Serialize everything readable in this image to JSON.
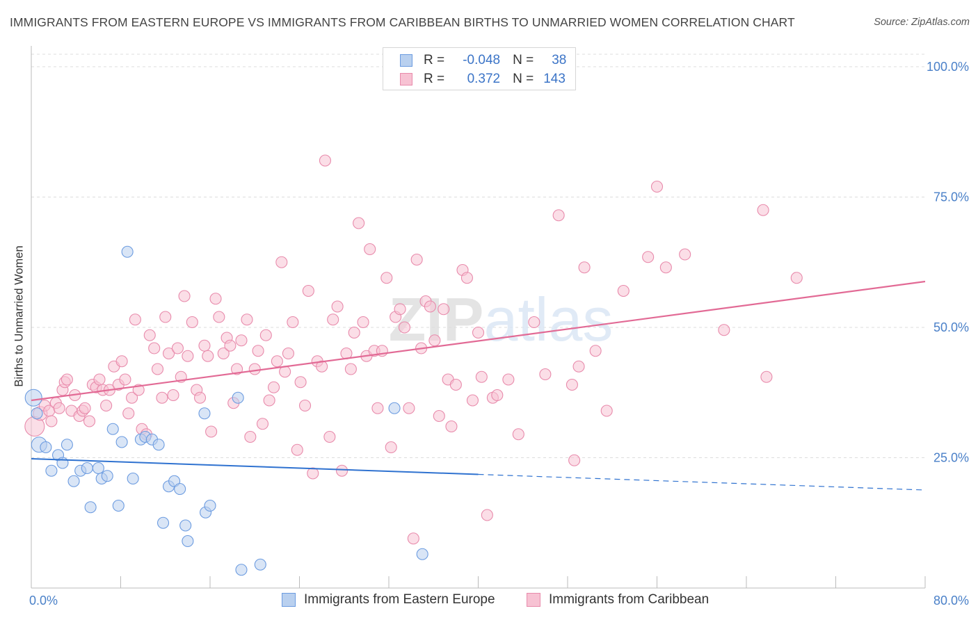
{
  "title": "IMMIGRANTS FROM EASTERN EUROPE VS IMMIGRANTS FROM CARIBBEAN BIRTHS TO UNMARRIED WOMEN CORRELATION CHART",
  "source": "Source: ZipAtlas.com",
  "watermark": "ZIPatlas",
  "colors": {
    "blue_fill": "#b9d0ef",
    "blue_stroke": "#6b9be0",
    "blue_line": "#2f72d0",
    "pink_fill": "#f7c2d3",
    "pink_stroke": "#e88aab",
    "pink_line": "#e26a95",
    "tick_text": "#4a80c8",
    "grid": "#dcdcdc"
  },
  "legend": {
    "rows": [
      {
        "r_label": "R =",
        "r_value": "-0.048",
        "n_label": "N =",
        "n_value": "38"
      },
      {
        "r_label": "R =",
        "r_value": "0.372",
        "n_label": "N =",
        "n_value": "143"
      }
    ]
  },
  "chart_data": {
    "type": "scatter",
    "title": "IMMIGRANTS FROM EASTERN EUROPE VS IMMIGRANTS FROM CARIBBEAN BIRTHS TO UNMARRIED WOMEN CORRELATION CHART",
    "xlabel": "",
    "ylabel": "Births to Unmarried Women",
    "xlim": [
      0,
      80
    ],
    "ylim": [
      0,
      100
    ],
    "x_tick_labels": [
      "0.0%",
      "80.0%"
    ],
    "y_tick_labels": [
      "25.0%",
      "50.0%",
      "75.0%",
      "100.0%"
    ],
    "y_ticks": [
      25,
      50,
      75,
      100
    ],
    "grid": true,
    "legend_position": "top-center",
    "series": [
      {
        "name": "Immigrants from Eastern Europe",
        "r": -0.048,
        "n": 38,
        "trend": {
          "x0": 0,
          "y0": 24.8,
          "x1": 40,
          "y1": 21.8,
          "dashed_to_x": 80,
          "dashed_to_y": 18.8
        },
        "points": [
          [
            0.2,
            36.5,
            12
          ],
          [
            0.5,
            33.5,
            8
          ],
          [
            0.7,
            27.5,
            11
          ],
          [
            1.3,
            27.0,
            8
          ],
          [
            1.8,
            22.5,
            8
          ],
          [
            2.4,
            25.5,
            8
          ],
          [
            2.8,
            24.0,
            8
          ],
          [
            3.2,
            27.5,
            8
          ],
          [
            3.8,
            20.5,
            8
          ],
          [
            4.4,
            22.5,
            8
          ],
          [
            5.0,
            23.0,
            8
          ],
          [
            5.3,
            15.5,
            8
          ],
          [
            6.0,
            23.0,
            8
          ],
          [
            6.3,
            21.0,
            8
          ],
          [
            6.8,
            21.5,
            8
          ],
          [
            7.3,
            30.5,
            8
          ],
          [
            7.8,
            15.8,
            8
          ],
          [
            8.1,
            28.0,
            8
          ],
          [
            8.6,
            64.5,
            8
          ],
          [
            9.1,
            21.0,
            8
          ],
          [
            9.8,
            28.5,
            8
          ],
          [
            10.2,
            29.0,
            8
          ],
          [
            10.8,
            28.5,
            8
          ],
          [
            11.4,
            27.5,
            8
          ],
          [
            11.8,
            12.5,
            8
          ],
          [
            12.3,
            19.5,
            8
          ],
          [
            12.8,
            20.5,
            8
          ],
          [
            13.3,
            19.0,
            8
          ],
          [
            13.8,
            12.0,
            8
          ],
          [
            14.0,
            9.0,
            8
          ],
          [
            15.5,
            33.5,
            8
          ],
          [
            15.6,
            14.5,
            8
          ],
          [
            16.0,
            15.8,
            8
          ],
          [
            18.5,
            36.5,
            8
          ],
          [
            18.8,
            3.5,
            8
          ],
          [
            20.5,
            4.5,
            8
          ],
          [
            32.5,
            34.5,
            8
          ],
          [
            35.0,
            6.5,
            8
          ]
        ]
      },
      {
        "name": "Immigrants from Caribbean",
        "r": 0.372,
        "n": 143,
        "trend": {
          "x0": 0,
          "y0": 36.0,
          "x1": 80,
          "y1": 58.8
        },
        "points": [
          [
            0.3,
            31.0,
            14
          ],
          [
            0.8,
            33.5,
            10
          ],
          [
            1.2,
            35.0,
            8
          ],
          [
            1.6,
            34.0,
            8
          ],
          [
            1.8,
            32.0,
            8
          ],
          [
            2.2,
            35.5,
            8
          ],
          [
            2.5,
            34.5,
            8
          ],
          [
            2.8,
            38.0,
            8
          ],
          [
            3.0,
            39.5,
            8
          ],
          [
            3.2,
            40.0,
            8
          ],
          [
            3.6,
            34.0,
            8
          ],
          [
            3.9,
            37.0,
            8
          ],
          [
            4.3,
            33.0,
            8
          ],
          [
            4.6,
            34.0,
            8
          ],
          [
            4.8,
            34.5,
            8
          ],
          [
            5.2,
            32.0,
            8
          ],
          [
            5.5,
            39.0,
            8
          ],
          [
            5.8,
            38.5,
            8
          ],
          [
            6.1,
            40.0,
            8
          ],
          [
            6.4,
            38.0,
            8
          ],
          [
            6.7,
            35.0,
            8
          ],
          [
            7.0,
            38.0,
            8
          ],
          [
            7.4,
            42.5,
            8
          ],
          [
            7.8,
            39.0,
            8
          ],
          [
            8.1,
            43.5,
            8
          ],
          [
            8.4,
            40.0,
            8
          ],
          [
            8.7,
            33.5,
            8
          ],
          [
            9.0,
            36.5,
            8
          ],
          [
            9.3,
            51.5,
            8
          ],
          [
            9.6,
            38.0,
            8
          ],
          [
            9.9,
            30.5,
            8
          ],
          [
            10.3,
            29.5,
            8
          ],
          [
            10.6,
            48.5,
            8
          ],
          [
            11.0,
            46.0,
            8
          ],
          [
            11.3,
            42.0,
            8
          ],
          [
            11.7,
            36.5,
            8
          ],
          [
            12.0,
            52.0,
            8
          ],
          [
            12.3,
            45.0,
            8
          ],
          [
            12.7,
            37.0,
            8
          ],
          [
            13.1,
            46.0,
            8
          ],
          [
            13.4,
            40.5,
            8
          ],
          [
            13.7,
            56.0,
            8
          ],
          [
            14.0,
            44.5,
            8
          ],
          [
            14.4,
            51.0,
            8
          ],
          [
            14.8,
            38.0,
            8
          ],
          [
            15.1,
            36.5,
            8
          ],
          [
            15.5,
            46.5,
            8
          ],
          [
            15.8,
            44.5,
            8
          ],
          [
            16.1,
            30.0,
            8
          ],
          [
            16.5,
            55.5,
            8
          ],
          [
            16.8,
            52.0,
            8
          ],
          [
            17.2,
            45.0,
            8
          ],
          [
            17.5,
            48.0,
            8
          ],
          [
            17.8,
            46.5,
            8
          ],
          [
            18.1,
            35.5,
            8
          ],
          [
            18.4,
            42.0,
            8
          ],
          [
            18.8,
            47.5,
            8
          ],
          [
            19.3,
            51.5,
            8
          ],
          [
            19.6,
            29.0,
            8
          ],
          [
            20.0,
            42.0,
            8
          ],
          [
            20.3,
            45.5,
            8
          ],
          [
            20.7,
            31.5,
            8
          ],
          [
            21.0,
            48.5,
            8
          ],
          [
            21.3,
            36.0,
            8
          ],
          [
            21.7,
            38.5,
            8
          ],
          [
            22.0,
            43.5,
            8
          ],
          [
            22.4,
            62.5,
            8
          ],
          [
            22.7,
            41.5,
            8
          ],
          [
            23.0,
            45.0,
            8
          ],
          [
            23.4,
            51.0,
            8
          ],
          [
            23.8,
            26.5,
            8
          ],
          [
            24.1,
            39.5,
            8
          ],
          [
            24.5,
            35.0,
            8
          ],
          [
            24.8,
            57.0,
            8
          ],
          [
            25.2,
            22.0,
            8
          ],
          [
            25.6,
            43.5,
            8
          ],
          [
            26.0,
            42.5,
            8
          ],
          [
            26.3,
            82.0,
            8
          ],
          [
            26.7,
            29.0,
            8
          ],
          [
            27.0,
            51.5,
            8
          ],
          [
            27.4,
            54.0,
            8
          ],
          [
            27.8,
            22.5,
            8
          ],
          [
            28.2,
            45.0,
            8
          ],
          [
            28.6,
            42.0,
            8
          ],
          [
            28.9,
            49.0,
            8
          ],
          [
            29.3,
            70.0,
            8
          ],
          [
            29.7,
            51.0,
            8
          ],
          [
            30.0,
            44.5,
            8
          ],
          [
            30.3,
            65.0,
            8
          ],
          [
            30.7,
            45.5,
            8
          ],
          [
            31.0,
            34.5,
            8
          ],
          [
            31.4,
            45.5,
            8
          ],
          [
            31.8,
            59.5,
            8
          ],
          [
            32.2,
            27.0,
            8
          ],
          [
            32.6,
            52.0,
            8
          ],
          [
            33.0,
            53.5,
            8
          ],
          [
            33.4,
            50.0,
            8
          ],
          [
            33.8,
            34.5,
            8
          ],
          [
            34.2,
            9.5,
            8
          ],
          [
            34.5,
            63.0,
            8
          ],
          [
            34.9,
            46.0,
            8
          ],
          [
            35.3,
            55.0,
            8
          ],
          [
            35.7,
            54.0,
            8
          ],
          [
            36.1,
            47.5,
            8
          ],
          [
            36.5,
            33.0,
            8
          ],
          [
            36.9,
            53.5,
            8
          ],
          [
            37.3,
            40.0,
            8
          ],
          [
            37.6,
            31.0,
            8
          ],
          [
            38.0,
            39.0,
            8
          ],
          [
            38.6,
            61.0,
            8
          ],
          [
            39.0,
            59.5,
            8
          ],
          [
            39.5,
            36.0,
            8
          ],
          [
            40.0,
            49.0,
            8
          ],
          [
            40.3,
            40.5,
            8
          ],
          [
            40.8,
            14.0,
            8
          ],
          [
            41.3,
            36.5,
            8
          ],
          [
            41.7,
            37.0,
            8
          ],
          [
            42.7,
            40.0,
            8
          ],
          [
            43.6,
            29.5,
            8
          ],
          [
            45.0,
            51.0,
            8
          ],
          [
            46.0,
            41.0,
            8
          ],
          [
            47.2,
            71.5,
            8
          ],
          [
            48.4,
            39.0,
            8
          ],
          [
            48.6,
            24.5,
            8
          ],
          [
            49.0,
            42.5,
            8
          ],
          [
            49.5,
            61.5,
            8
          ],
          [
            50.5,
            45.5,
            8
          ],
          [
            51.5,
            34.0,
            8
          ],
          [
            53.0,
            57.0,
            8
          ],
          [
            55.2,
            63.5,
            8
          ],
          [
            56.0,
            77.0,
            8
          ],
          [
            56.8,
            61.5,
            8
          ],
          [
            58.5,
            64.0,
            8
          ],
          [
            62.0,
            49.5,
            8
          ],
          [
            65.5,
            72.5,
            8
          ],
          [
            65.8,
            40.5,
            8
          ],
          [
            68.5,
            59.5,
            8
          ]
        ]
      }
    ]
  },
  "bottom_legend": [
    {
      "label": "Immigrants from Eastern Europe"
    },
    {
      "label": "Immigrants from Caribbean"
    }
  ]
}
